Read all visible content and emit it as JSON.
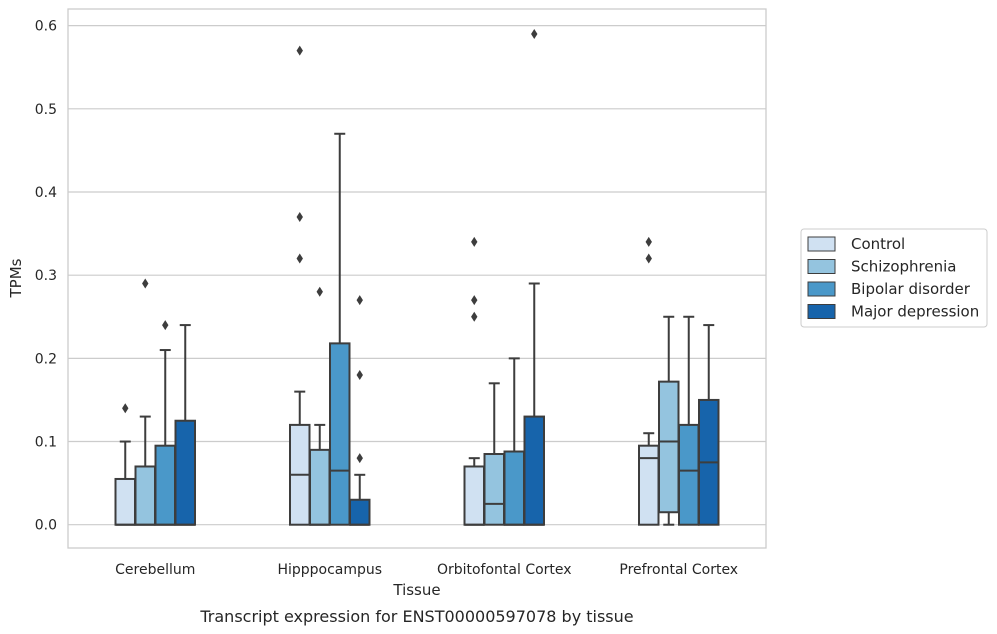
{
  "caption": "Transcript expression for ENST00000597078 by tissue",
  "chart_data": {
    "type": "box",
    "title": "",
    "xlabel": "Tissue",
    "ylabel": "TPMs",
    "ylim": [
      -0.028,
      0.62
    ],
    "yticks": [
      "0.0",
      "0.1",
      "0.2",
      "0.3",
      "0.4",
      "0.5",
      "0.6"
    ],
    "grid": "horizontal",
    "legend_position": "right",
    "categories": [
      "Cerebellum",
      "Hipppocampus",
      "Orbitofontal Cortex",
      "Prefrontal Cortex"
    ],
    "series": [
      {
        "name": "Control",
        "color": "#d0e1f2",
        "boxes": [
          {
            "q1": 0,
            "median": 0,
            "q3": 0.055,
            "whisker_low": 0,
            "whisker_high": 0.1,
            "outliers": [
              0.14
            ]
          },
          {
            "q1": 0,
            "median": 0.06,
            "q3": 0.12,
            "whisker_low": 0,
            "whisker_high": 0.16,
            "outliers": [
              0.32,
              0.37,
              0.57
            ]
          },
          {
            "q1": 0,
            "median": 0,
            "q3": 0.07,
            "whisker_low": 0,
            "whisker_high": 0.08,
            "outliers": [
              0.25,
              0.27,
              0.34
            ]
          },
          {
            "q1": 0,
            "median": 0.08,
            "q3": 0.095,
            "whisker_low": 0,
            "whisker_high": 0.11,
            "outliers": [
              0.32,
              0.34
            ]
          }
        ]
      },
      {
        "name": "Schizophrenia",
        "color": "#94c4df",
        "boxes": [
          {
            "q1": 0,
            "median": 0,
            "q3": 0.07,
            "whisker_low": 0,
            "whisker_high": 0.13,
            "outliers": [
              0.29
            ]
          },
          {
            "q1": 0,
            "median": 0,
            "q3": 0.09,
            "whisker_low": 0,
            "whisker_high": 0.12,
            "outliers": [
              0.28
            ]
          },
          {
            "q1": 0,
            "median": 0.025,
            "q3": 0.085,
            "whisker_low": 0,
            "whisker_high": 0.17,
            "outliers": []
          },
          {
            "q1": 0.015,
            "median": 0.1,
            "q3": 0.172,
            "whisker_low": 0,
            "whisker_high": 0.25,
            "outliers": []
          }
        ]
      },
      {
        "name": "Bipolar disorder",
        "color": "#4a98c9",
        "boxes": [
          {
            "q1": 0,
            "median": 0,
            "q3": 0.095,
            "whisker_low": 0,
            "whisker_high": 0.21,
            "outliers": [
              0.24
            ]
          },
          {
            "q1": 0,
            "median": 0.065,
            "q3": 0.218,
            "whisker_low": 0,
            "whisker_high": 0.47,
            "outliers": []
          },
          {
            "q1": 0,
            "median": 0,
            "q3": 0.088,
            "whisker_low": 0,
            "whisker_high": 0.2,
            "outliers": []
          },
          {
            "q1": 0,
            "median": 0.065,
            "q3": 0.12,
            "whisker_low": 0,
            "whisker_high": 0.25,
            "outliers": []
          }
        ]
      },
      {
        "name": "Major depression",
        "color": "#1764ab",
        "boxes": [
          {
            "q1": 0,
            "median": 0,
            "q3": 0.125,
            "whisker_low": 0,
            "whisker_high": 0.24,
            "outliers": []
          },
          {
            "q1": 0,
            "median": 0,
            "q3": 0.03,
            "whisker_low": 0,
            "whisker_high": 0.06,
            "outliers": [
              0.08,
              0.18,
              0.27
            ]
          },
          {
            "q1": 0,
            "median": 0,
            "q3": 0.13,
            "whisker_low": 0,
            "whisker_high": 0.29,
            "outliers": [
              0.59
            ]
          },
          {
            "q1": 0,
            "median": 0.075,
            "q3": 0.15,
            "whisker_low": 0,
            "whisker_high": 0.24,
            "outliers": []
          }
        ]
      }
    ]
  }
}
